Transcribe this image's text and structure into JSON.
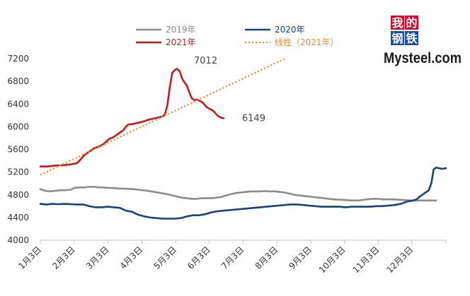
{
  "chart_data": {
    "type": "line",
    "x_ticks": [
      "1月3日",
      "2月3日",
      "3月3日",
      "4月3日",
      "5月3日",
      "6月3日",
      "7月3日",
      "8月3日",
      "9月3日",
      "10月3日",
      "11月3日",
      "12月3日"
    ],
    "ylim": [
      4000,
      7200
    ],
    "yticks": [
      4000,
      4400,
      4800,
      5200,
      5600,
      6000,
      6400,
      6800,
      7200
    ],
    "grid": false,
    "legend_position": "top",
    "series": [
      {
        "name": "2019年",
        "color": "#8c8c8c",
        "style": "solid",
        "points": [
          [
            0,
            4900
          ],
          [
            4,
            4870
          ],
          [
            8,
            4860
          ],
          [
            12,
            4870
          ],
          [
            16,
            4880
          ],
          [
            20,
            4880
          ],
          [
            25,
            4890
          ],
          [
            28,
            4920
          ],
          [
            32,
            4930
          ],
          [
            36,
            4930
          ],
          [
            40,
            4940
          ],
          [
            44,
            4940
          ],
          [
            48,
            4930
          ],
          [
            52,
            4930
          ],
          [
            56,
            4920
          ],
          [
            60,
            4920
          ],
          [
            64,
            4910
          ],
          [
            68,
            4910
          ],
          [
            72,
            4905
          ],
          [
            76,
            4900
          ],
          [
            80,
            4890
          ],
          [
            84,
            4880
          ],
          [
            88,
            4870
          ],
          [
            92,
            4855
          ],
          [
            96,
            4840
          ],
          [
            100,
            4825
          ],
          [
            104,
            4810
          ],
          [
            108,
            4790
          ],
          [
            112,
            4770
          ],
          [
            116,
            4750
          ],
          [
            120,
            4740
          ],
          [
            124,
            4730
          ],
          [
            128,
            4730
          ],
          [
            132,
            4740
          ],
          [
            136,
            4740
          ],
          [
            140,
            4740
          ],
          [
            144,
            4750
          ],
          [
            148,
            4760
          ],
          [
            152,
            4790
          ],
          [
            156,
            4810
          ],
          [
            160,
            4830
          ],
          [
            164,
            4840
          ],
          [
            168,
            4850
          ],
          [
            172,
            4860
          ],
          [
            176,
            4860
          ],
          [
            180,
            4860
          ],
          [
            184,
            4865
          ],
          [
            188,
            4860
          ],
          [
            192,
            4860
          ],
          [
            196,
            4850
          ],
          [
            200,
            4840
          ],
          [
            204,
            4820
          ],
          [
            208,
            4800
          ],
          [
            212,
            4790
          ],
          [
            216,
            4780
          ],
          [
            220,
            4770
          ],
          [
            224,
            4760
          ],
          [
            228,
            4750
          ],
          [
            232,
            4740
          ],
          [
            236,
            4730
          ],
          [
            240,
            4720
          ],
          [
            244,
            4715
          ],
          [
            248,
            4710
          ],
          [
            252,
            4705
          ],
          [
            256,
            4700
          ],
          [
            260,
            4700
          ],
          [
            264,
            4710
          ],
          [
            268,
            4720
          ],
          [
            272,
            4730
          ],
          [
            276,
            4730
          ],
          [
            280,
            4720
          ],
          [
            284,
            4720
          ],
          [
            288,
            4720
          ],
          [
            292,
            4715
          ],
          [
            296,
            4710
          ],
          [
            300,
            4705
          ],
          [
            304,
            4700
          ],
          [
            308,
            4700
          ],
          [
            312,
            4700
          ],
          [
            316,
            4700
          ],
          [
            320,
            4700
          ],
          [
            324,
            4700
          ]
        ]
      },
      {
        "name": "2020年",
        "color": "#17427d",
        "style": "solid",
        "points": [
          [
            0,
            4640
          ],
          [
            5,
            4630
          ],
          [
            10,
            4640
          ],
          [
            15,
            4635
          ],
          [
            20,
            4640
          ],
          [
            25,
            4635
          ],
          [
            30,
            4630
          ],
          [
            35,
            4630
          ],
          [
            40,
            4600
          ],
          [
            45,
            4580
          ],
          [
            50,
            4580
          ],
          [
            55,
            4590
          ],
          [
            60,
            4580
          ],
          [
            65,
            4570
          ],
          [
            70,
            4520
          ],
          [
            75,
            4500
          ],
          [
            80,
            4450
          ],
          [
            85,
            4420
          ],
          [
            90,
            4400
          ],
          [
            95,
            4390
          ],
          [
            100,
            4380
          ],
          [
            105,
            4380
          ],
          [
            110,
            4380
          ],
          [
            115,
            4390
          ],
          [
            120,
            4420
          ],
          [
            125,
            4440
          ],
          [
            130,
            4440
          ],
          [
            135,
            4460
          ],
          [
            140,
            4490
          ],
          [
            145,
            4510
          ],
          [
            150,
            4520
          ],
          [
            155,
            4530
          ],
          [
            160,
            4540
          ],
          [
            165,
            4550
          ],
          [
            170,
            4560
          ],
          [
            175,
            4570
          ],
          [
            180,
            4580
          ],
          [
            185,
            4590
          ],
          [
            190,
            4600
          ],
          [
            195,
            4610
          ],
          [
            200,
            4620
          ],
          [
            205,
            4630
          ],
          [
            210,
            4630
          ],
          [
            215,
            4620
          ],
          [
            220,
            4610
          ],
          [
            225,
            4600
          ],
          [
            230,
            4590
          ],
          [
            235,
            4590
          ],
          [
            240,
            4590
          ],
          [
            245,
            4590
          ],
          [
            250,
            4580
          ],
          [
            255,
            4590
          ],
          [
            260,
            4590
          ],
          [
            265,
            4590
          ],
          [
            270,
            4590
          ],
          [
            275,
            4600
          ],
          [
            280,
            4600
          ],
          [
            285,
            4610
          ],
          [
            290,
            4620
          ],
          [
            295,
            4640
          ],
          [
            300,
            4680
          ],
          [
            305,
            4700
          ],
          [
            308,
            4720
          ],
          [
            310,
            4760
          ],
          [
            312,
            4790
          ],
          [
            314,
            4820
          ],
          [
            316,
            4850
          ],
          [
            318,
            4880
          ],
          [
            320,
            5000
          ],
          [
            322,
            5250
          ],
          [
            324,
            5280
          ],
          [
            326,
            5270
          ],
          [
            328,
            5260
          ],
          [
            330,
            5260
          ],
          [
            332,
            5270
          ]
        ]
      },
      {
        "name": "2021年",
        "color": "#c01c1c",
        "style": "solid",
        "points": [
          [
            0,
            5300
          ],
          [
            6,
            5300
          ],
          [
            10,
            5310
          ],
          [
            14,
            5320
          ],
          [
            18,
            5320
          ],
          [
            22,
            5330
          ],
          [
            26,
            5340
          ],
          [
            30,
            5360
          ],
          [
            32,
            5400
          ],
          [
            36,
            5500
          ],
          [
            40,
            5560
          ],
          [
            44,
            5620
          ],
          [
            48,
            5650
          ],
          [
            52,
            5700
          ],
          [
            56,
            5780
          ],
          [
            60,
            5820
          ],
          [
            64,
            5880
          ],
          [
            68,
            5940
          ],
          [
            70,
            6000
          ],
          [
            72,
            6040
          ],
          [
            76,
            6050
          ],
          [
            80,
            6070
          ],
          [
            84,
            6090
          ],
          [
            88,
            6120
          ],
          [
            92,
            6140
          ],
          [
            96,
            6160
          ],
          [
            100,
            6180
          ],
          [
            102,
            6220
          ],
          [
            104,
            6380
          ],
          [
            106,
            6700
          ],
          [
            108,
            6950
          ],
          [
            110,
            7000
          ],
          [
            112,
            7020
          ],
          [
            114,
            6980
          ],
          [
            116,
            6850
          ],
          [
            118,
            6780
          ],
          [
            120,
            6720
          ],
          [
            122,
            6600
          ],
          [
            124,
            6500
          ],
          [
            126,
            6470
          ],
          [
            128,
            6480
          ],
          [
            130,
            6460
          ],
          [
            132,
            6440
          ],
          [
            134,
            6400
          ],
          [
            136,
            6350
          ],
          [
            138,
            6320
          ],
          [
            140,
            6300
          ],
          [
            142,
            6270
          ],
          [
            144,
            6220
          ],
          [
            146,
            6180
          ],
          [
            148,
            6160
          ],
          [
            150,
            6149
          ]
        ]
      },
      {
        "name": "线性（2021年）",
        "color": "#ef8a2f",
        "style": "dotted",
        "points": [
          [
            0,
            5150
          ],
          [
            200,
            7200
          ]
        ]
      }
    ],
    "annotations": [
      {
        "text": "7012",
        "x": 113,
        "y": 7012
      },
      {
        "text": "6149",
        "x": 150,
        "y": 6149
      }
    ]
  },
  "legend": {
    "items": [
      {
        "label": "2019年",
        "color": "#8c8c8c",
        "style": "solid"
      },
      {
        "label": "2020年",
        "color": "#17427d",
        "style": "solid"
      },
      {
        "label": "2021年",
        "color": "#c01c1c",
        "style": "solid"
      },
      {
        "label": "线性（2021年）",
        "color": "#ef8a2f",
        "style": "dotted"
      }
    ]
  },
  "logo": {
    "cn_chars": [
      "我",
      "的",
      "钢",
      "铁"
    ],
    "cn_colors": [
      "#c8102e",
      "#c8102e",
      "#1f4e9c",
      "#1f4e9c"
    ],
    "en": "Mysteel.com"
  }
}
